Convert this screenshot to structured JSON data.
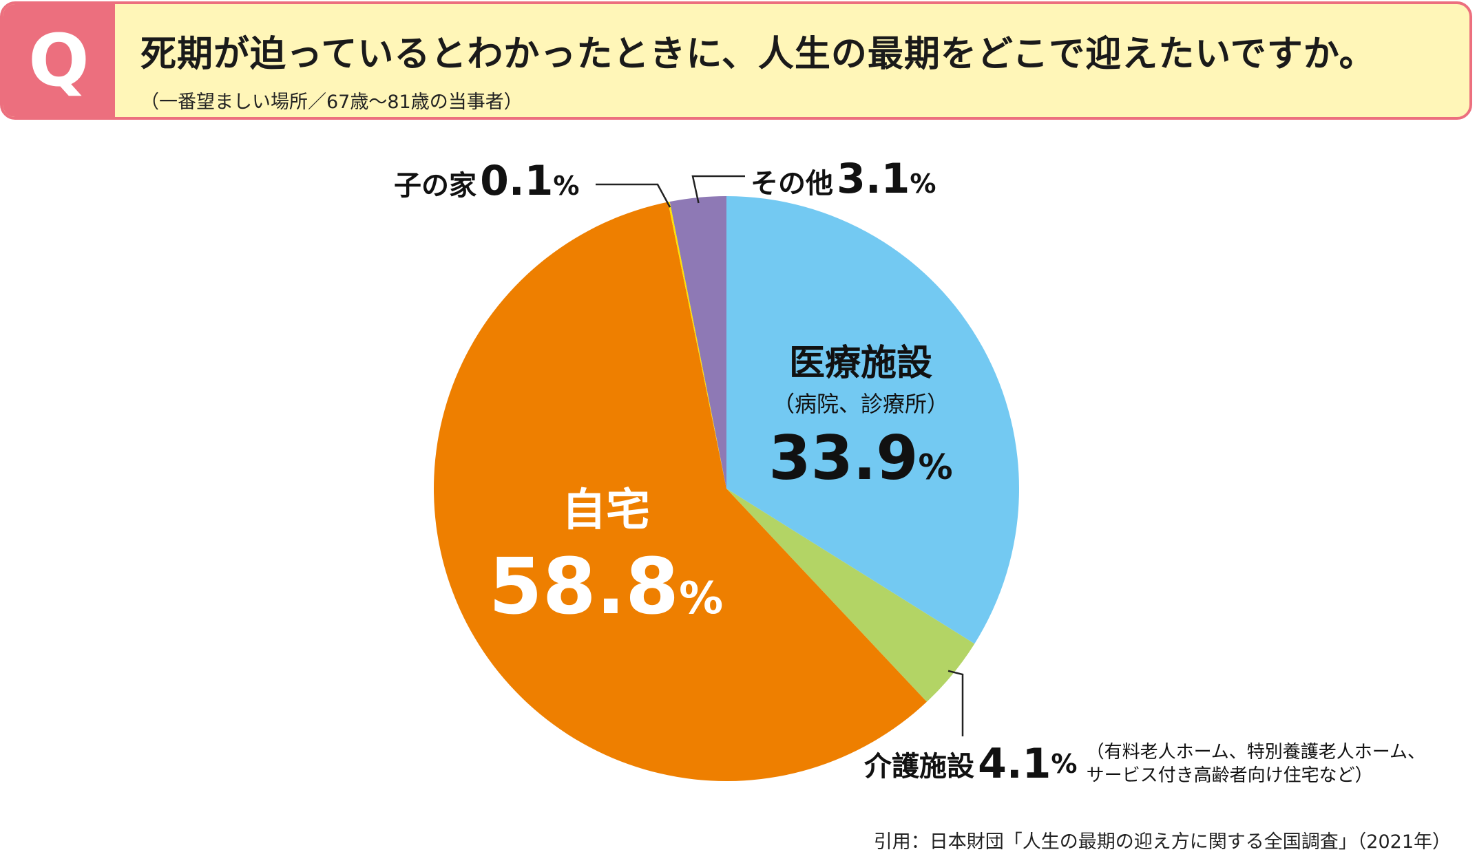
{
  "question": {
    "mark": "Q",
    "title": "死期が迫っているとわかったときに、人生の最期をどこで迎えたいですか。",
    "subtitle": "（一番望ましい場所／67歳〜81歳の当事者）"
  },
  "chart_data": {
    "type": "pie",
    "start_angle_deg": 0,
    "direction": "clockwise",
    "slices": [
      {
        "key": "iryo",
        "name": "医療施設",
        "note": "（病院、診療所）",
        "value": 33.9,
        "num": "33.9",
        "pct": "%",
        "color": "#73c9f2"
      },
      {
        "key": "kaigo",
        "name": "介護施設",
        "note_lines": [
          "（有料老人ホーム、特別養護老人ホーム、",
          "サービス付き高齢者向け住宅など）"
        ],
        "value": 4.1,
        "num": "4.1",
        "pct": "%",
        "color": "#b3d465"
      },
      {
        "key": "jitaku",
        "name": "自宅",
        "value": 58.8,
        "num": "58.8",
        "pct": "%",
        "color": "#ee7f00"
      },
      {
        "key": "ko",
        "name": "子の家",
        "value": 0.1,
        "num": "0.1",
        "pct": "%",
        "color": "#ffe400"
      },
      {
        "key": "sonota",
        "name": "その他",
        "value": 3.1,
        "num": "3.1",
        "pct": "%",
        "color": "#8e79b5"
      }
    ]
  },
  "source": "引用：日本財団「人生の最期の迎え方に関する全国調査」（2021年）"
}
